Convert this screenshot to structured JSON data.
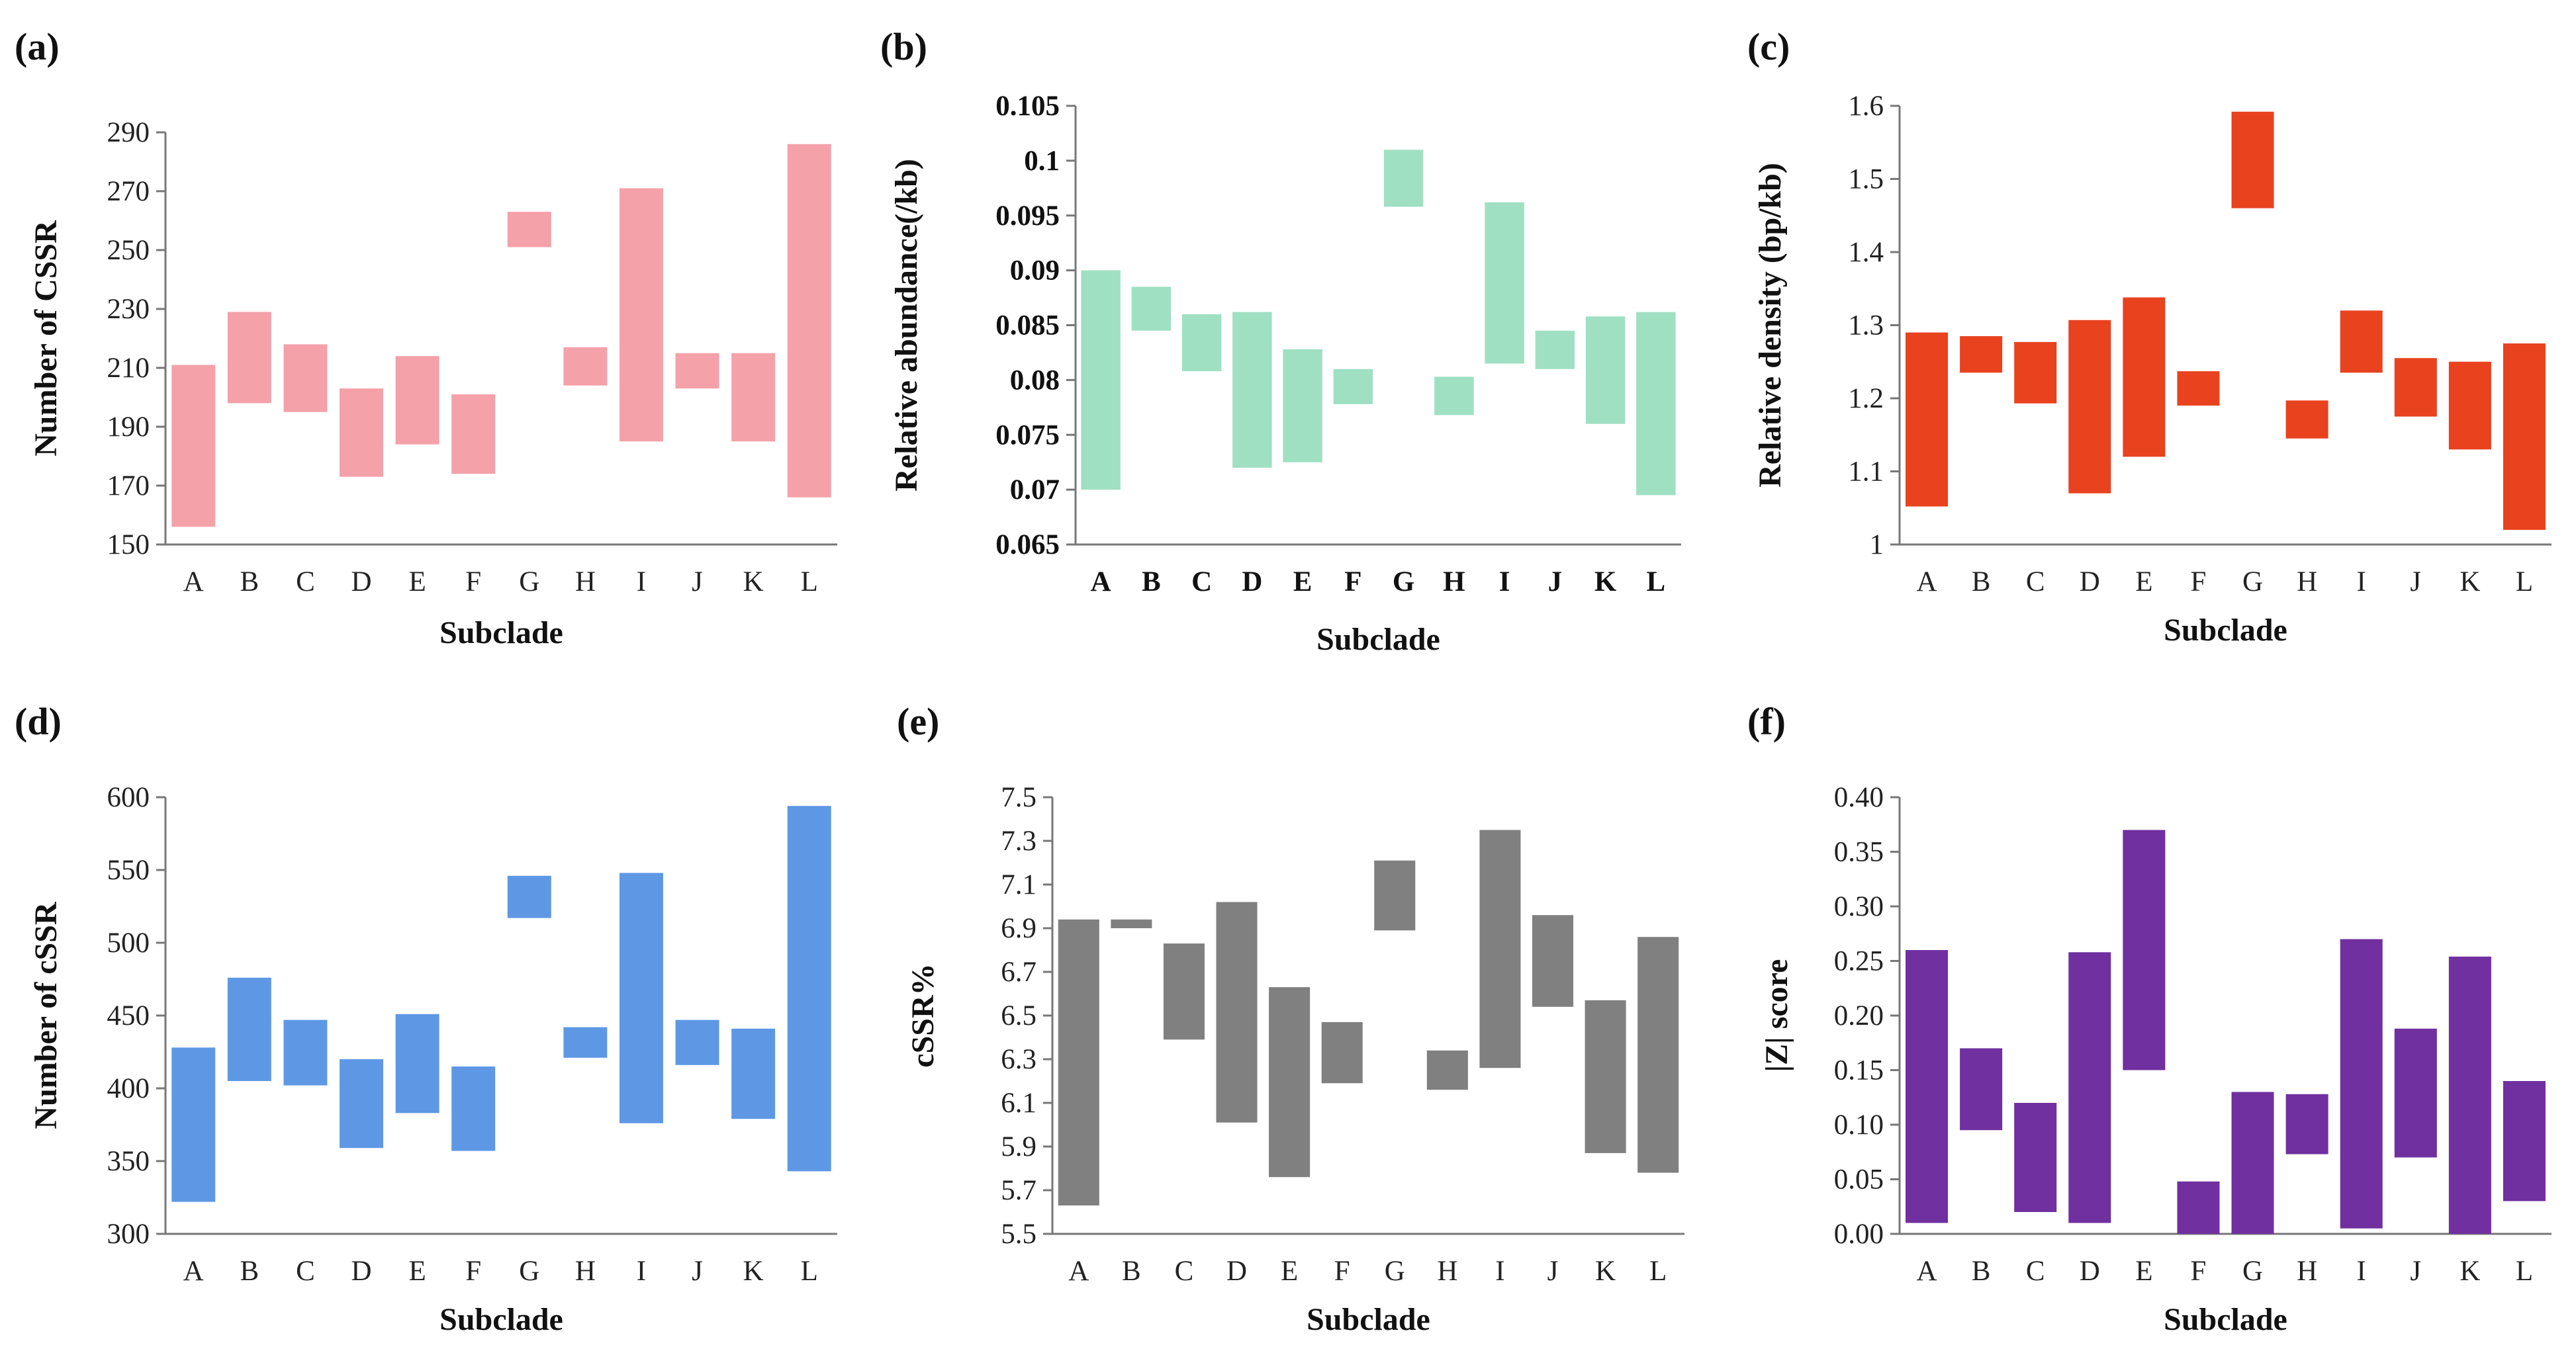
{
  "chart_data": [
    {
      "panel": "(a)",
      "type": "bar",
      "subtype": "floating-range",
      "color": "#F4A1AA",
      "xlabel": "Subclade",
      "ylabel": "Number of CSSR",
      "ylim": [
        150,
        290
      ],
      "yticks": [
        "150",
        "170",
        "190",
        "210",
        "230",
        "250",
        "270",
        "290"
      ],
      "bold_ticks": false,
      "categories": [
        "A",
        "B",
        "C",
        "D",
        "E",
        "F",
        "G",
        "H",
        "I",
        "J",
        "K",
        "L"
      ],
      "ranges": [
        [
          156,
          211
        ],
        [
          198,
          229
        ],
        [
          195,
          218
        ],
        [
          173,
          203
        ],
        [
          184,
          214
        ],
        [
          174,
          201
        ],
        [
          251,
          263
        ],
        [
          204,
          217
        ],
        [
          185,
          271
        ],
        [
          203,
          215
        ],
        [
          185,
          215
        ],
        [
          166,
          286
        ]
      ]
    },
    {
      "panel": "(b)",
      "type": "bar",
      "subtype": "floating-range",
      "color": "#9FE0C3",
      "xlabel": "Subclade",
      "ylabel": "Relative abundance(/kb)",
      "ylim": [
        0.065,
        0.105
      ],
      "yticks": [
        "0.065",
        "0.07",
        "0.075",
        "0.08",
        "0.085",
        "0.09",
        "0.095",
        "0.1",
        "0.105"
      ],
      "bold_ticks": true,
      "categories": [
        "A",
        "B",
        "C",
        "D",
        "E",
        "F",
        "G",
        "H",
        "I",
        "J",
        "K",
        "L"
      ],
      "ranges": [
        [
          0.07,
          0.09
        ],
        [
          0.0845,
          0.0885
        ],
        [
          0.0808,
          0.086
        ],
        [
          0.072,
          0.0862
        ],
        [
          0.0725,
          0.0828
        ],
        [
          0.0778,
          0.081
        ],
        [
          0.0958,
          0.101
        ],
        [
          0.0768,
          0.0803
        ],
        [
          0.0815,
          0.0962
        ],
        [
          0.081,
          0.0845
        ],
        [
          0.076,
          0.0858
        ],
        [
          0.0695,
          0.0862
        ]
      ]
    },
    {
      "panel": "(c)",
      "type": "bar",
      "subtype": "floating-range",
      "color": "#E8421F",
      "xlabel": "Subclade",
      "ylabel": "Relative density (bp/kb)",
      "ylim": [
        1.0,
        1.6
      ],
      "yticks": [
        "1",
        "1.1",
        "1.2",
        "1.3",
        "1.4",
        "1.5",
        "1.6"
      ],
      "bold_ticks": false,
      "categories": [
        "A",
        "B",
        "C",
        "D",
        "E",
        "F",
        "G",
        "H",
        "I",
        "J",
        "K",
        "L"
      ],
      "ranges": [
        [
          1.052,
          1.29
        ],
        [
          1.235,
          1.285
        ],
        [
          1.193,
          1.277
        ],
        [
          1.07,
          1.307
        ],
        [
          1.12,
          1.338
        ],
        [
          1.19,
          1.237
        ],
        [
          1.46,
          1.592
        ],
        [
          1.145,
          1.197
        ],
        [
          1.235,
          1.32
        ],
        [
          1.175,
          1.255
        ],
        [
          1.13,
          1.25
        ],
        [
          1.02,
          1.275
        ]
      ]
    },
    {
      "panel": "(d)",
      "type": "bar",
      "subtype": "floating-range",
      "color": "#5E98E5",
      "xlabel": "Subclade",
      "ylabel": "Number of cSSR",
      "ylim": [
        300,
        600
      ],
      "yticks": [
        "300",
        "350",
        "400",
        "450",
        "500",
        "550",
        "600"
      ],
      "bold_ticks": false,
      "categories": [
        "A",
        "B",
        "C",
        "D",
        "E",
        "F",
        "G",
        "H",
        "I",
        "J",
        "K",
        "L"
      ],
      "ranges": [
        [
          322,
          428
        ],
        [
          405,
          476
        ],
        [
          402,
          447
        ],
        [
          359,
          420
        ],
        [
          383,
          451
        ],
        [
          357,
          415
        ],
        [
          517,
          546
        ],
        [
          421,
          442
        ],
        [
          376,
          548
        ],
        [
          416,
          447
        ],
        [
          379,
          441
        ],
        [
          343,
          594
        ]
      ]
    },
    {
      "panel": "(e)",
      "type": "bar",
      "subtype": "floating-range",
      "color": "#808080",
      "xlabel": "Subclade",
      "ylabel": "cSSR%",
      "ylim": [
        5.5,
        7.5
      ],
      "yticks": [
        "5.5",
        "5.7",
        "5.9",
        "6.1",
        "6.3",
        "6.5",
        "6.7",
        "6.9",
        "7.1",
        "7.3",
        "7.5"
      ],
      "bold_ticks": false,
      "categories": [
        "A",
        "B",
        "C",
        "D",
        "E",
        "F",
        "G",
        "H",
        "I",
        "J",
        "K",
        "L"
      ],
      "ranges": [
        [
          5.63,
          6.94
        ],
        [
          6.9,
          6.94
        ],
        [
          6.39,
          6.83
        ],
        [
          6.01,
          7.02
        ],
        [
          5.76,
          6.63
        ],
        [
          6.19,
          6.47
        ],
        [
          6.89,
          7.21
        ],
        [
          6.16,
          6.34
        ],
        [
          6.26,
          7.35
        ],
        [
          6.54,
          6.96
        ],
        [
          5.87,
          6.57
        ],
        [
          5.78,
          6.86
        ]
      ]
    },
    {
      "panel": "(f)",
      "type": "bar",
      "subtype": "floating-range",
      "color": "#7030A0",
      "xlabel": "Subclade",
      "ylabel": "|Z| score",
      "ylim": [
        0.0,
        0.4
      ],
      "yticks": [
        "0.00",
        "0.05",
        "0.10",
        "0.15",
        "0.20",
        "0.25",
        "0.30",
        "0.35",
        "0.40"
      ],
      "bold_ticks": false,
      "categories": [
        "A",
        "B",
        "C",
        "D",
        "E",
        "F",
        "G",
        "H",
        "I",
        "J",
        "K",
        "L"
      ],
      "ranges": [
        [
          0.01,
          0.26
        ],
        [
          0.095,
          0.17
        ],
        [
          0.02,
          0.12
        ],
        [
          0.01,
          0.258
        ],
        [
          0.15,
          0.37
        ],
        [
          0.0,
          0.048
        ],
        [
          0.0,
          0.13
        ],
        [
          0.073,
          0.128
        ],
        [
          0.005,
          0.27
        ],
        [
          0.07,
          0.188
        ],
        [
          0.0,
          0.254
        ],
        [
          0.03,
          0.14
        ]
      ]
    }
  ]
}
